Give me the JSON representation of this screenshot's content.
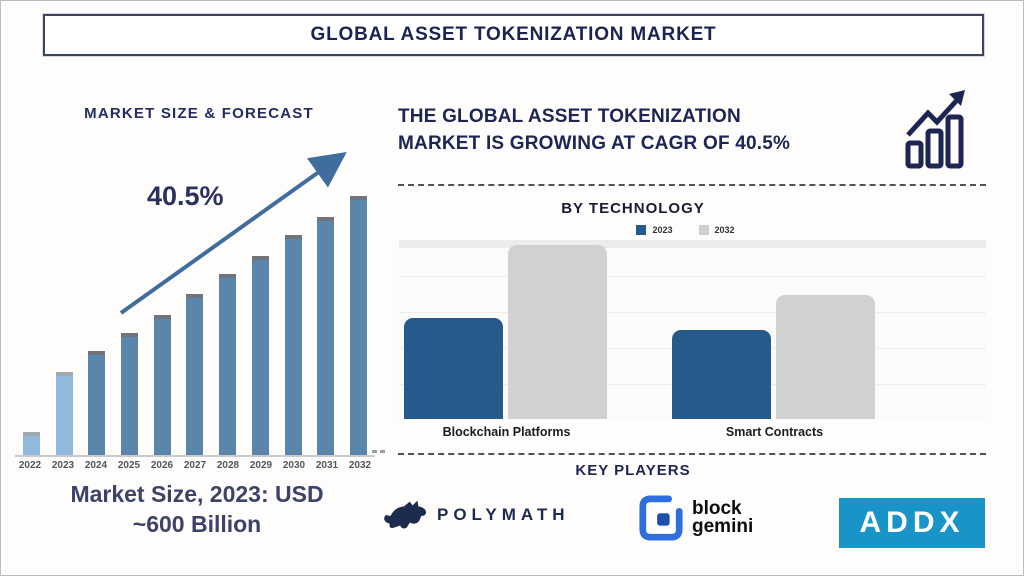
{
  "page": {
    "title": "GLOBAL ASSET TOKENIZATION MARKET"
  },
  "left": {
    "heading": "MARKET SIZE & FORECAST",
    "cagr_label": "40.5%",
    "market_size_note_line1": "Market Size, 2023: USD",
    "market_size_note_line2": "~600 Billion"
  },
  "right": {
    "headline_line1": "THE GLOBAL ASSET TOKENIZATION",
    "headline_line2": "MARKET IS GROWING AT CAGR OF 40.5%",
    "by_technology_heading": "BY TECHNOLOGY",
    "legend": [
      {
        "label": "2023",
        "color": "#255a8b"
      },
      {
        "label": "2032",
        "color": "#d1d1d1"
      }
    ]
  },
  "key_players": {
    "heading": "KEY PLAYERS",
    "items": [
      {
        "name": "POLYMATH",
        "icon": "bull-icon",
        "color": "#1d2b4f"
      },
      {
        "name": "block gemini",
        "line1": "block",
        "line2": "gemini",
        "icon": "block-gemini-icon",
        "color": "#2e6fe0"
      },
      {
        "name": "ADDX",
        "color": "#1894c9"
      }
    ]
  },
  "colors": {
    "navy_text": "#1c2554",
    "steel_blue_bar": "#5b86ab",
    "highlight_blue_bar": "#90b9dd",
    "bar_cap_gray": "#70757c",
    "arrow_blue": "#3f6d9e",
    "tech_2023_blue": "#255a8b",
    "tech_2032_gray": "#d1d1d1",
    "addx_blue": "#1894c9"
  },
  "chart_data": [
    {
      "type": "bar",
      "title": "MARKET SIZE & FORECAST",
      "categories": [
        "2022",
        "2023",
        "2024",
        "2025",
        "2026",
        "2027",
        "2028",
        "2029",
        "2030",
        "2031",
        "2032"
      ],
      "values": [
        9,
        32,
        40,
        47,
        54,
        62,
        70,
        77,
        85,
        92,
        100
      ],
      "value_note": "relative bar heights, no y-axis shown; 2023 market size stated as USD ~600 Billion",
      "highlight_categories": [
        "2022",
        "2023"
      ],
      "annotation": "40.5% CAGR arrow rising left-to-right",
      "xlabel": "",
      "ylabel": "",
      "grid": false,
      "legend_position": "none"
    },
    {
      "type": "bar",
      "title": "BY TECHNOLOGY",
      "categories": [
        "Blockchain Platforms",
        "Smart Contracts"
      ],
      "series": [
        {
          "name": "2023",
          "color": "#255a8b",
          "values": [
            58,
            51
          ]
        },
        {
          "name": "2032",
          "color": "#d1d1d1",
          "values": [
            100,
            71
          ]
        }
      ],
      "value_note": "relative bar heights, no y-axis shown",
      "xlabel": "",
      "ylabel": "",
      "grid": true,
      "legend_position": "top"
    }
  ]
}
